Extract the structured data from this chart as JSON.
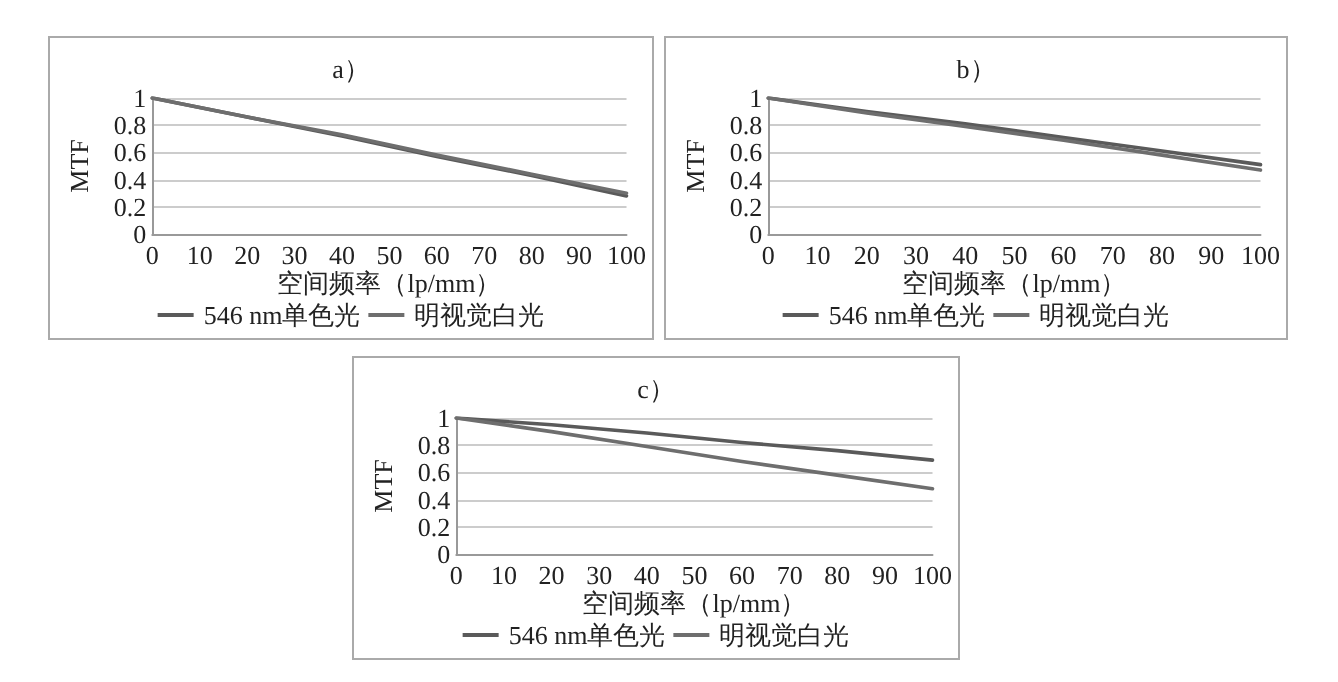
{
  "chart_data": [
    {
      "type": "line",
      "title": "a）",
      "xlabel": "空间频率（lp/mm）",
      "ylabel": "MTF",
      "x": [
        0,
        20,
        40,
        60,
        80,
        100
      ],
      "series": [
        {
          "name": "546 nm单色光",
          "color": "#5a5a5a",
          "values": [
            1,
            0.86,
            0.72,
            0.57,
            0.43,
            0.28
          ]
        },
        {
          "name": "明视觉白光",
          "color": "#6e6e6e",
          "values": [
            1,
            0.86,
            0.73,
            0.58,
            0.44,
            0.3
          ]
        }
      ],
      "xlim": [
        0,
        100
      ],
      "xticks": [
        0,
        10,
        20,
        30,
        40,
        50,
        60,
        70,
        80,
        90,
        100
      ],
      "ylim": [
        0,
        1
      ],
      "yticks": [
        0,
        0.2,
        0.4,
        0.6,
        0.8,
        1
      ],
      "grid": "y",
      "legend": "bottom",
      "marker": "none",
      "line_style": "solid"
    },
    {
      "type": "line",
      "title": "b）",
      "xlabel": "空间频率（lp/mm）",
      "ylabel": "MTF",
      "x": [
        0,
        20,
        40,
        60,
        80,
        100
      ],
      "series": [
        {
          "name": "546 nm单色光",
          "color": "#5a5a5a",
          "values": [
            1,
            0.9,
            0.81,
            0.71,
            0.61,
            0.51
          ]
        },
        {
          "name": "明视觉白光",
          "color": "#6e6e6e",
          "values": [
            1,
            0.89,
            0.79,
            0.69,
            0.58,
            0.47
          ]
        }
      ],
      "xlim": [
        0,
        100
      ],
      "xticks": [
        0,
        10,
        20,
        30,
        40,
        50,
        60,
        70,
        80,
        90,
        100
      ],
      "ylim": [
        0,
        1
      ],
      "yticks": [
        0,
        0.2,
        0.4,
        0.6,
        0.8,
        1
      ],
      "grid": "y",
      "legend": "bottom",
      "marker": "none",
      "line_style": "solid"
    },
    {
      "type": "line",
      "title": "c）",
      "xlabel": "空间频率（lp/mm）",
      "ylabel": "MTF",
      "x": [
        0,
        20,
        40,
        60,
        80,
        100
      ],
      "series": [
        {
          "name": "546 nm单色光",
          "color": "#5a5a5a",
          "values": [
            1,
            0.95,
            0.89,
            0.82,
            0.76,
            0.69
          ]
        },
        {
          "name": "明视觉白光",
          "color": "#6e6e6e",
          "values": [
            1,
            0.9,
            0.79,
            0.68,
            0.58,
            0.48
          ]
        }
      ],
      "xlim": [
        0,
        100
      ],
      "xticks": [
        0,
        10,
        20,
        30,
        40,
        50,
        60,
        70,
        80,
        90,
        100
      ],
      "ylim": [
        0,
        1
      ],
      "yticks": [
        0,
        0.2,
        0.4,
        0.6,
        0.8,
        1
      ],
      "grid": "y",
      "legend": "bottom",
      "marker": "none",
      "line_style": "solid"
    }
  ]
}
